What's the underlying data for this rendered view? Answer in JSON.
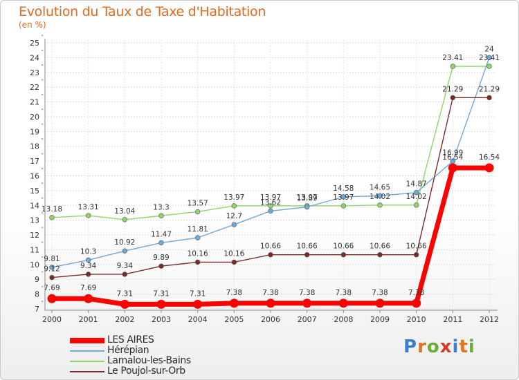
{
  "header": {
    "title": "Evolution du Taux de Taxe d'Habitation",
    "unit": "(en %)"
  },
  "brand": {
    "name": "Proxiti",
    "letters": [
      "P",
      "r",
      "o",
      "x",
      "i",
      "t",
      "i"
    ],
    "colors": [
      "#3a7fd0",
      "#e0731d",
      "#6cae32",
      "#d83a2c",
      "#3a7fd0",
      "#e0731d",
      "#6cae32"
    ]
  },
  "chart_data": {
    "type": "line",
    "title": "Evolution du Taux de Taxe d'Habitation",
    "ylabel": "(en %)",
    "xlabel": "",
    "x": [
      "2000",
      "2001",
      "2002",
      "2003",
      "2004",
      "2005",
      "2006",
      "2007",
      "2008",
      "2009",
      "2010",
      "2011",
      "2012"
    ],
    "ylim": [
      7,
      25
    ],
    "yticks": [
      "7",
      "8",
      "9",
      "10",
      "11",
      "12",
      "13",
      "14",
      "15",
      "16",
      "17",
      "18",
      "19",
      "20",
      "21",
      "22",
      "23",
      "24",
      "25"
    ],
    "grid": true,
    "legend_position": "bottom-left",
    "series": [
      {
        "name": "LES AIRES",
        "color": "#ff0000",
        "values": [
          7.69,
          7.69,
          7.31,
          7.31,
          7.31,
          7.38,
          7.38,
          7.38,
          7.38,
          7.38,
          7.38,
          16.54,
          16.54
        ],
        "labels": [
          "7.69",
          "7.69",
          "7.31",
          "7.31",
          "7.31",
          "7.38",
          "7.38",
          "7.38",
          "7.38",
          "7.38",
          "7.38",
          "16.54",
          "16.54"
        ]
      },
      {
        "name": "Hérépian",
        "color": "#6fa8dc",
        "values": [
          9.81,
          10.3,
          10.92,
          11.47,
          11.81,
          12.7,
          13.62,
          13.89,
          14.58,
          14.65,
          14.87,
          16.99,
          24
        ],
        "labels": [
          "9.81",
          "10.3",
          "10.92",
          "11.47",
          "11.81",
          "12.7",
          "13.62",
          "13.89",
          "14.58",
          "14.65",
          "14.87",
          "16.99",
          "24"
        ]
      },
      {
        "name": "Lamalou-les-Bains",
        "color": "#90d46a",
        "values": [
          13.18,
          13.31,
          13.04,
          13.3,
          13.57,
          13.97,
          13.97,
          13.97,
          13.97,
          14.02,
          14.02,
          23.41,
          23.41
        ],
        "labels": [
          "13.18",
          "13.31",
          "13.04",
          "13.3",
          "13.57",
          "13.97",
          "13.97",
          "13.97",
          "13.97",
          "14.02",
          "14.02",
          "23.41",
          "23.41"
        ]
      },
      {
        "name": "Le Poujol-sur-Orb",
        "color": "#7b2a2a",
        "values": [
          9.12,
          9.34,
          9.34,
          9.89,
          10.16,
          10.16,
          10.66,
          10.66,
          10.66,
          10.66,
          10.66,
          21.29,
          21.29
        ],
        "labels": [
          "9.12",
          "9.34",
          "9.34",
          "9.89",
          "10.16",
          "10.16",
          "10.66",
          "10.66",
          "10.66",
          "10.66",
          "10.66",
          "21.29",
          "21.29"
        ]
      }
    ]
  }
}
